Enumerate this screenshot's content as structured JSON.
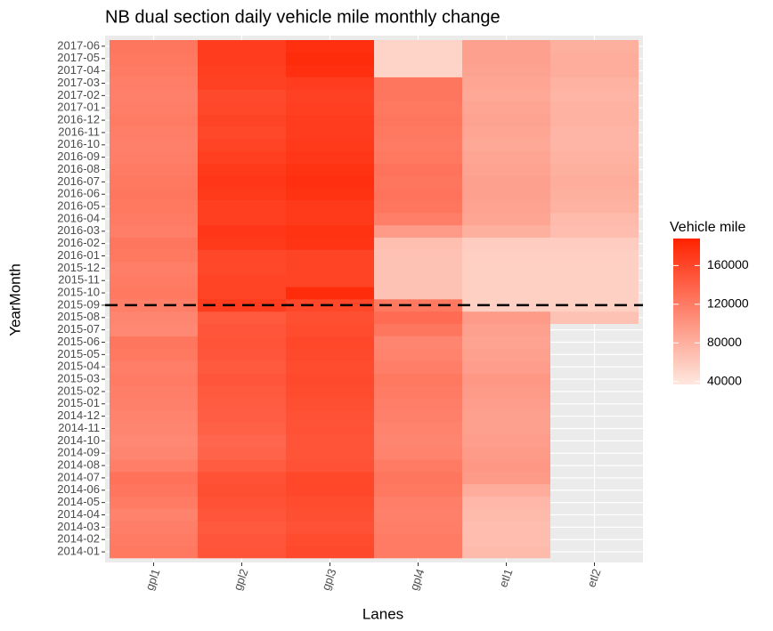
{
  "chart_data": {
    "type": "heatmap",
    "title": "NB dual section daily vehicle mile monthly change",
    "x_label": "Lanes",
    "y_label": "YearMonth",
    "x_categories": [
      "gpl1",
      "gpl2",
      "gpl3",
      "gpl4",
      "etl1",
      "etl2"
    ],
    "y_categories": [
      "2014-01",
      "2014-02",
      "2014-03",
      "2014-04",
      "2014-05",
      "2014-06",
      "2014-07",
      "2014-08",
      "2014-09",
      "2014-10",
      "2014-11",
      "2014-12",
      "2015-01",
      "2015-02",
      "2015-03",
      "2015-04",
      "2015-05",
      "2015-06",
      "2015-07",
      "2015-08",
      "2015-09",
      "2015-10",
      "2015-11",
      "2015-12",
      "2016-01",
      "2016-02",
      "2016-03",
      "2016-04",
      "2016-05",
      "2016-06",
      "2016-07",
      "2016-08",
      "2016-09",
      "2016-10",
      "2016-11",
      "2016-12",
      "2017-01",
      "2017-02",
      "2017-03",
      "2017-04",
      "2017-05",
      "2017-06"
    ],
    "series": [
      {
        "name": "gpl1",
        "values": [
          122000,
          120000,
          118000,
          115000,
          120000,
          125000,
          128000,
          118000,
          112000,
          110000,
          112000,
          114000,
          116000,
          118000,
          120000,
          118000,
          122000,
          124000,
          110000,
          112000,
          118000,
          122000,
          120000,
          118000,
          122000,
          124000,
          118000,
          120000,
          122000,
          124000,
          122000,
          120000,
          118000,
          116000,
          118000,
          120000,
          118000,
          116000,
          118000,
          120000,
          122000,
          124000
        ]
      },
      {
        "name": "gpl2",
        "values": [
          150000,
          148000,
          146000,
          148000,
          152000,
          154000,
          152000,
          144000,
          138000,
          136000,
          140000,
          142000,
          144000,
          146000,
          148000,
          146000,
          148000,
          150000,
          148000,
          146000,
          168000,
          162000,
          162000,
          160000,
          160000,
          170000,
          172000,
          166000,
          166000,
          170000,
          172000,
          170000,
          166000,
          162000,
          160000,
          162000,
          160000,
          158000,
          164000,
          166000,
          168000,
          168000
        ]
      },
      {
        "name": "gpl3",
        "values": [
          158000,
          156000,
          152000,
          154000,
          156000,
          160000,
          160000,
          152000,
          150000,
          150000,
          152000,
          152000,
          154000,
          156000,
          158000,
          156000,
          158000,
          160000,
          156000,
          154000,
          160000,
          180000,
          162000,
          162000,
          162000,
          174000,
          176000,
          170000,
          170000,
          176000,
          178000,
          176000,
          172000,
          170000,
          168000,
          168000,
          166000,
          164000,
          168000,
          178000,
          180000,
          178000
        ]
      },
      {
        "name": "gpl4",
        "values": [
          120000,
          120000,
          118000,
          116000,
          118000,
          122000,
          124000,
          120000,
          114000,
          112000,
          114000,
          116000,
          118000,
          120000,
          122000,
          118000,
          114000,
          112000,
          124000,
          132000,
          122000,
          66000,
          66000,
          66000,
          66000,
          68000,
          96000,
          118000,
          124000,
          126000,
          124000,
          126000,
          122000,
          120000,
          122000,
          124000,
          122000,
          124000,
          124000,
          52000,
          52000,
          52000
        ]
      },
      {
        "name": "etl1",
        "values": [
          72000,
          70000,
          70000,
          72000,
          74000,
          82000,
          96000,
          98000,
          96000,
          94000,
          92000,
          92000,
          94000,
          96000,
          98000,
          94000,
          92000,
          90000,
          92000,
          96000,
          56000,
          56000,
          56000,
          56000,
          56000,
          58000,
          80000,
          88000,
          90000,
          92000,
          92000,
          90000,
          88000,
          86000,
          88000,
          90000,
          88000,
          86000,
          88000,
          90000,
          92000,
          92000
        ]
      },
      {
        "name": "etl2",
        "values": [
          null,
          null,
          null,
          null,
          null,
          null,
          null,
          null,
          null,
          null,
          null,
          null,
          null,
          null,
          null,
          null,
          null,
          null,
          null,
          66000,
          56000,
          56000,
          56000,
          56000,
          56000,
          58000,
          70000,
          72000,
          78000,
          80000,
          82000,
          80000,
          78000,
          76000,
          76000,
          78000,
          78000,
          76000,
          78000,
          82000,
          82000,
          80000
        ]
      }
    ],
    "colorbar_title": "Vehicle mile",
    "colorlim": [
      37000,
      188000
    ],
    "colorticks": [
      40000,
      80000,
      120000,
      160000
    ],
    "color_low": "#fee8df",
    "color_high": "#ff2200",
    "reference_line": {
      "y_category": "2015-09",
      "style": "dashed",
      "color": "#000000"
    },
    "grid": true
  }
}
